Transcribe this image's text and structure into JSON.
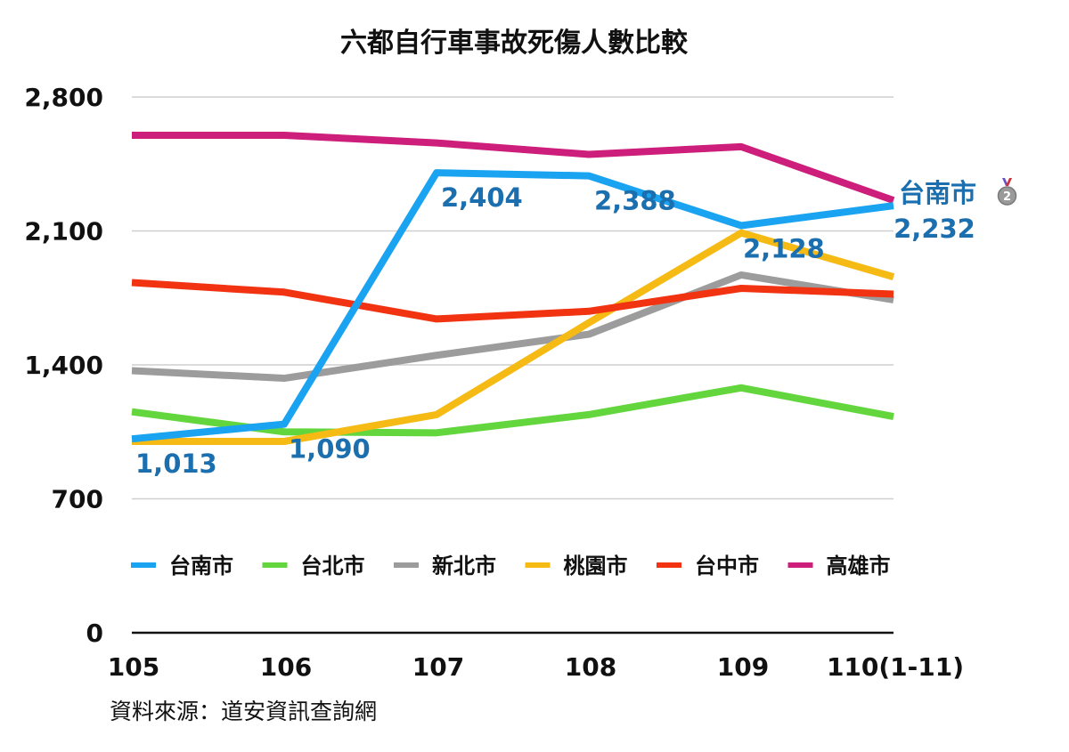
{
  "chart_data": {
    "type": "line",
    "title": "六都自行車事故死傷人數比較",
    "categories": [
      "105",
      "106",
      "107",
      "108",
      "109",
      "110(1-11)"
    ],
    "ylim": [
      0,
      2800
    ],
    "yticks": [
      0,
      700,
      1400,
      2100,
      2800
    ],
    "ytick_labels": [
      "0",
      "700",
      "1,400",
      "2,100",
      "2,800"
    ],
    "grid": true,
    "legend_position": "lower-center",
    "series": [
      {
        "name": "台南市",
        "color": "#1aa3f0",
        "values": [
          1013,
          1090,
          2404,
          2388,
          2128,
          2232
        ]
      },
      {
        "name": "台北市",
        "color": "#62d63c",
        "values": [
          1155,
          1050,
          1045,
          1140,
          1280,
          1130
        ]
      },
      {
        "name": "新北市",
        "color": "#9c9c9c",
        "values": [
          1370,
          1330,
          1450,
          1560,
          1870,
          1740
        ]
      },
      {
        "name": "桃園市",
        "color": "#f5ba14",
        "values": [
          1000,
          1000,
          1140,
          1620,
          2090,
          1860
        ]
      },
      {
        "name": "台中市",
        "color": "#f23312",
        "values": [
          1830,
          1780,
          1640,
          1680,
          1800,
          1770
        ]
      },
      {
        "name": "高雄市",
        "color": "#cc1e7a",
        "values": [
          2600,
          2600,
          2560,
          2500,
          2540,
          2260
        ]
      }
    ],
    "data_labels": [
      {
        "series": "台南市",
        "index": 0,
        "text": "1,013"
      },
      {
        "series": "台南市",
        "index": 1,
        "text": "1,090"
      },
      {
        "series": "台南市",
        "index": 2,
        "text": "2,404"
      },
      {
        "series": "台南市",
        "index": 3,
        "text": "2,388"
      },
      {
        "series": "台南市",
        "index": 4,
        "text": "2,128"
      },
      {
        "series": "台南市",
        "index": 5,
        "text": "2,232"
      }
    ],
    "annotation": {
      "text": "台南市",
      "badge": "2",
      "icon": "silver-medal-icon"
    }
  },
  "source_note": "資料來源：道安資訊查詢網"
}
